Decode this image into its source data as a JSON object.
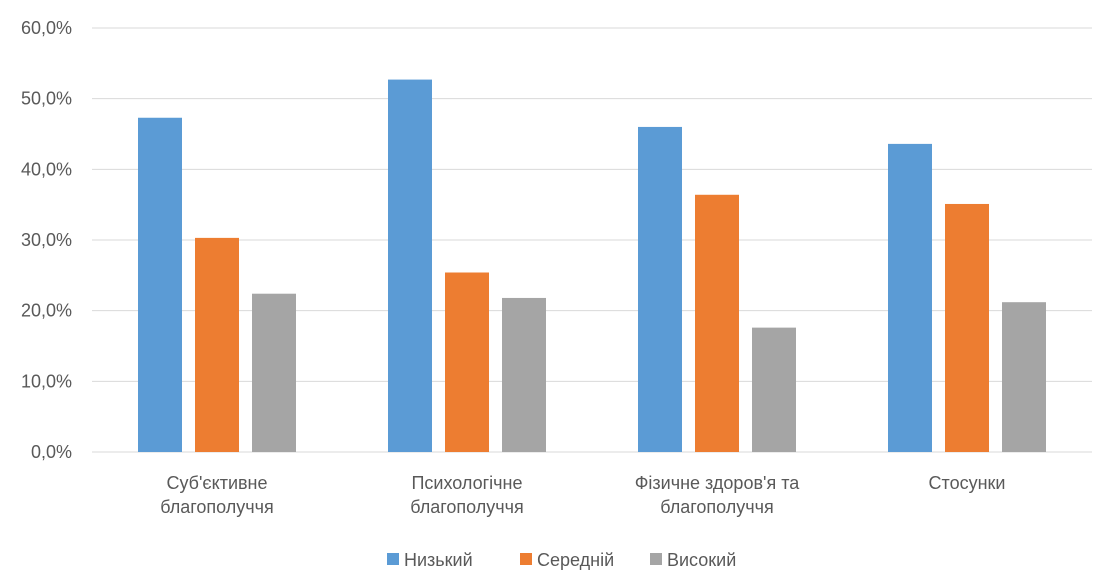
{
  "chart_data": {
    "type": "bar",
    "categories": [
      [
        "Суб'єктивне",
        "благополуччя"
      ],
      [
        "Психологічне",
        "благополуччя"
      ],
      [
        "Фізичне здоров'я та",
        "благополуччя"
      ],
      [
        "Стосунки"
      ]
    ],
    "series": [
      {
        "name": "Низький",
        "color": "#5B9BD5",
        "values": [
          47.3,
          52.7,
          46.0,
          43.6
        ]
      },
      {
        "name": "Середній",
        "color": "#ED7D31",
        "values": [
          30.3,
          25.4,
          36.4,
          35.1
        ]
      },
      {
        "name": "Високий",
        "color": "#A5A5A5",
        "values": [
          22.4,
          21.8,
          17.6,
          21.2
        ]
      }
    ],
    "yticks": [
      "0,0%",
      "10,0%",
      "20,0%",
      "30,0%",
      "40,0%",
      "50,0%",
      "60,0%"
    ],
    "ylim": [
      0,
      60
    ],
    "grid": true,
    "gridColor": "#D9D9D9",
    "legend": "bottom"
  }
}
